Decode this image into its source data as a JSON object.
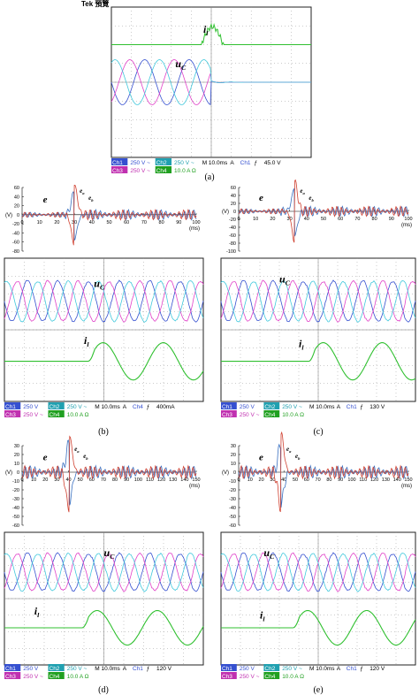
{
  "panels": [
    {
      "label": "(a)",
      "header": "Tek 預覽",
      "il": [
        "i",
        "l"
      ],
      "uc": [
        "u",
        "C"
      ],
      "status": [
        [
          "Ch1",
          "250 V ~",
          "Ch2",
          "250 V ~",
          "M 10.0ms",
          "A",
          "Ch1",
          "ƒ",
          "45.0 V"
        ],
        [
          "Ch3",
          "250 V ~",
          "Ch4",
          "10.0 A Ω"
        ]
      ]
    },
    {
      "label": "(b)",
      "il": [
        "i",
        "l"
      ],
      "uc": [
        "u",
        "C"
      ],
      "e": "e",
      "ea": [
        "e",
        "a"
      ],
      "eb": [
        "e",
        "b"
      ],
      "vunit": "(V)",
      "tunit": "(ms)",
      "yticks": [
        "60",
        "40",
        "20",
        "0",
        "-20",
        "-40",
        "-60",
        "-80"
      ],
      "xticks": [
        "0",
        "10",
        "20",
        "30",
        "40",
        "50",
        "60",
        "70",
        "80",
        "90",
        "100"
      ],
      "status": [
        [
          "Ch1",
          "250 V",
          "Ch2",
          "250 V ~",
          "M 10.0ms",
          "A",
          "Ch4",
          "ƒ",
          "400mA"
        ],
        [
          "Ch3",
          "250 V ~",
          "Ch4",
          "10.0 A Ω"
        ]
      ]
    },
    {
      "label": "(c)",
      "il": [
        "i",
        "l"
      ],
      "uc": [
        "u",
        "C"
      ],
      "e": "e",
      "ea": [
        "e",
        "a"
      ],
      "eb": [
        "e",
        "b"
      ],
      "vunit": "(V)",
      "tunit": "(ms)",
      "yticks": [
        "60",
        "40",
        "20",
        "0",
        "-20",
        "-40",
        "-60",
        "-80",
        "-100"
      ],
      "xticks": [
        "0",
        "10",
        "20",
        "30",
        "40",
        "50",
        "60",
        "70",
        "80",
        "90",
        "100"
      ],
      "status": [
        [
          "Ch1",
          "250 V",
          "Ch2",
          "250 V ~",
          "M 10.0ms",
          "A",
          "Ch1",
          "ƒ",
          "130 V"
        ],
        [
          "Ch3",
          "250 V ~",
          "Ch4",
          "10.0 A Ω"
        ]
      ]
    },
    {
      "label": "(d)",
      "il": [
        "i",
        "l"
      ],
      "uc": [
        "u",
        "C"
      ],
      "e": "e",
      "ea": [
        "e",
        "a"
      ],
      "eb": [
        "e",
        "b"
      ],
      "vunit": "(V)",
      "tunit": "(ms)",
      "yticks": [
        "30",
        "20",
        "10",
        "0",
        "-10",
        "-20",
        "-30",
        "-40",
        "-50",
        "-60"
      ],
      "xticks": [
        "0",
        "10",
        "20",
        "30",
        "40",
        "50",
        "60",
        "70",
        "80",
        "90",
        "100",
        "110",
        "120",
        "130",
        "140",
        "150"
      ],
      "status": [
        [
          "Ch1",
          "250 V",
          "Ch2",
          "250 V ~",
          "M 10.0ms",
          "A",
          "Ch1",
          "ƒ",
          "120 V"
        ],
        [
          "Ch3",
          "250 V ~",
          "Ch4",
          "10.0 A Ω"
        ]
      ]
    },
    {
      "label": "(e)",
      "il": [
        "i",
        "l"
      ],
      "uc": [
        "u",
        "C"
      ],
      "e": "e",
      "ea": [
        "e",
        "a"
      ],
      "eb": [
        "e",
        "b"
      ],
      "vunit": "(V)",
      "tunit": "(ms)",
      "yticks": [
        "30",
        "20",
        "10",
        "0",
        "-10",
        "-20",
        "-30",
        "-40",
        "-50",
        "-60"
      ],
      "xticks": [
        "0",
        "10",
        "20",
        "30",
        "40",
        "50",
        "60",
        "70",
        "80",
        "90",
        "100",
        "110",
        "120",
        "130",
        "140",
        "150"
      ],
      "status": [
        [
          "Ch1",
          "250 V",
          "Ch2",
          "250 V ~",
          "M 10.0ms",
          "A",
          "Ch1",
          "ƒ",
          "120 V"
        ],
        [
          "Ch3",
          "250 V ~",
          "Ch4",
          "10.0 A Ω"
        ]
      ]
    }
  ]
}
